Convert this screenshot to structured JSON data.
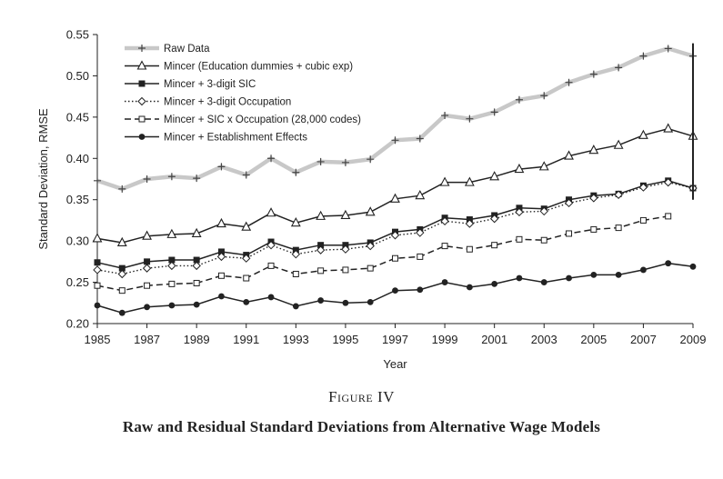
{
  "caption": {
    "figure_label": "Figure IV",
    "figure_title": "Raw and Residual Standard Deviations from Alternative Wage Models"
  },
  "chart_data": {
    "type": "line",
    "title": "",
    "xlabel": "Year",
    "ylabel": "Standard Deviation, RMSE",
    "xlim": [
      1985,
      2009
    ],
    "ylim": [
      0.2,
      0.55
    ],
    "xticks": [
      1985,
      1987,
      1989,
      1991,
      1993,
      1995,
      1997,
      1999,
      2001,
      2003,
      2005,
      2007,
      2009
    ],
    "yticks": [
      0.2,
      0.25,
      0.3,
      0.35,
      0.4,
      0.45,
      0.5,
      0.55
    ],
    "ytick_labels": [
      "0.20",
      "0.25",
      "0.30",
      "0.35",
      "0.40",
      "0.45",
      "0.50",
      "0.55"
    ],
    "grid": false,
    "legend_position": "top-left",
    "x": [
      1985,
      1986,
      1987,
      1988,
      1989,
      1990,
      1991,
      1992,
      1993,
      1994,
      1995,
      1996,
      1997,
      1998,
      1999,
      2000,
      2001,
      2002,
      2003,
      2004,
      2005,
      2006,
      2007,
      2008,
      2009
    ],
    "series": [
      {
        "name": "Raw Data",
        "style": "raw",
        "color": "#c8c8c8",
        "values": [
          0.373,
          0.363,
          0.375,
          0.378,
          0.376,
          0.39,
          0.38,
          0.4,
          0.383,
          0.396,
          0.395,
          0.399,
          0.422,
          0.424,
          0.452,
          0.448,
          0.456,
          0.471,
          0.476,
          0.492,
          0.502,
          0.51,
          0.524,
          0.533,
          0.524
        ]
      },
      {
        "name": "Mincer (Education dummies + cubic exp)",
        "style": "triangle",
        "color": "#222222",
        "values": [
          0.303,
          0.298,
          0.306,
          0.308,
          0.309,
          0.321,
          0.317,
          0.334,
          0.322,
          0.33,
          0.331,
          0.335,
          0.351,
          0.355,
          0.371,
          0.371,
          0.378,
          0.387,
          0.39,
          0.403,
          0.41,
          0.416,
          0.428,
          0.436,
          0.427
        ]
      },
      {
        "name": "Mincer + 3-digit SIC",
        "style": "square",
        "color": "#222222",
        "values": [
          0.274,
          0.267,
          0.275,
          0.277,
          0.277,
          0.287,
          0.283,
          0.299,
          0.289,
          0.295,
          0.295,
          0.298,
          0.311,
          0.314,
          0.328,
          0.326,
          0.331,
          0.34,
          0.339,
          0.35,
          0.355,
          0.357,
          0.367,
          0.373,
          0.364
        ]
      },
      {
        "name": "Mincer + 3-digit Occupation",
        "style": "diamond-dotted",
        "color": "#222222",
        "values": [
          0.265,
          0.26,
          0.267,
          0.27,
          0.27,
          0.281,
          0.279,
          0.295,
          0.284,
          0.289,
          0.29,
          0.294,
          0.307,
          0.31,
          0.324,
          0.321,
          0.327,
          0.335,
          0.336,
          0.346,
          0.352,
          0.356,
          0.365,
          0.371,
          0.364
        ]
      },
      {
        "name": "Mincer + SIC x Occupation (28,000 codes)",
        "style": "dashed",
        "color": "#222222",
        "values": [
          0.246,
          0.24,
          0.246,
          0.248,
          0.249,
          0.258,
          0.255,
          0.27,
          0.26,
          0.264,
          0.265,
          0.267,
          0.279,
          0.281,
          0.294,
          0.29,
          0.295,
          0.302,
          0.301,
          0.309,
          0.314,
          0.316,
          0.325,
          0.33,
          null
        ]
      },
      {
        "name": "Mincer + Establishment Effects",
        "style": "dot",
        "color": "#222222",
        "values": [
          0.222,
          0.213,
          0.22,
          0.222,
          0.223,
          0.233,
          0.226,
          0.232,
          0.221,
          0.228,
          0.225,
          0.226,
          0.24,
          0.241,
          0.25,
          0.244,
          0.248,
          0.255,
          0.25,
          0.255,
          0.259,
          0.259,
          0.265,
          0.273,
          0.269
        ]
      }
    ]
  }
}
